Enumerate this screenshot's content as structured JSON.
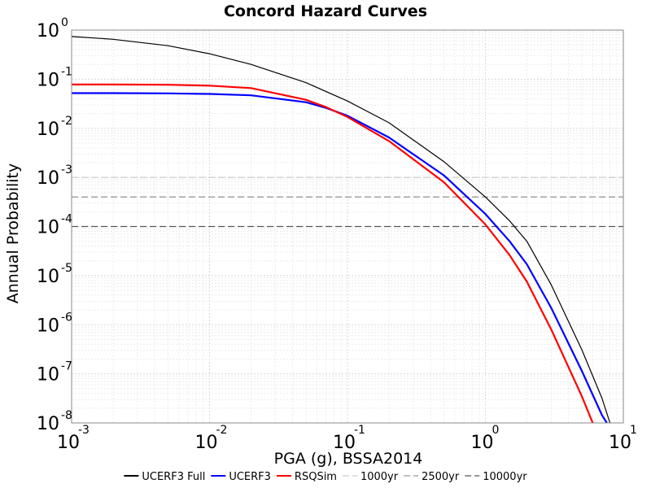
{
  "chart_data": {
    "type": "line",
    "title": "Concord Hazard Curves",
    "xlabel": "PGA (g), BSSA2014",
    "ylabel": "Annual Probability",
    "xscale": "log",
    "yscale": "log",
    "xlim": [
      0.001,
      10
    ],
    "ylim": [
      1e-08,
      1
    ],
    "x_ticks": [
      {
        "base": "10",
        "exp": "-3",
        "value": 0.001
      },
      {
        "base": "10",
        "exp": "-2",
        "value": 0.01
      },
      {
        "base": "10",
        "exp": "-1",
        "value": 0.1
      },
      {
        "base": "10",
        "exp": "0",
        "value": 1
      },
      {
        "base": "10",
        "exp": "1",
        "value": 10
      }
    ],
    "y_ticks": [
      {
        "base": "10",
        "exp": "0",
        "value": 1
      },
      {
        "base": "10",
        "exp": "-1",
        "value": 0.1
      },
      {
        "base": "10",
        "exp": "-2",
        "value": 0.01
      },
      {
        "base": "10",
        "exp": "-3",
        "value": 0.001
      },
      {
        "base": "10",
        "exp": "-4",
        "value": 0.0001
      },
      {
        "base": "10",
        "exp": "-5",
        "value": 1e-05
      },
      {
        "base": "10",
        "exp": "-6",
        "value": 1e-06
      },
      {
        "base": "10",
        "exp": "-7",
        "value": 1e-07
      },
      {
        "base": "10",
        "exp": "-8",
        "value": 1e-08
      }
    ],
    "grid": true,
    "legend_position": "bottom",
    "series": [
      {
        "name": "UCERF3 Full",
        "color": "#000000",
        "x": [
          0.001,
          0.002,
          0.005,
          0.01,
          0.02,
          0.05,
          0.1,
          0.2,
          0.5,
          1,
          1.5,
          2,
          3,
          5,
          7,
          8
        ],
        "y": [
          0.74,
          0.65,
          0.48,
          0.33,
          0.2,
          0.085,
          0.036,
          0.013,
          0.0021,
          0.0004,
          0.00013,
          5e-05,
          6.5e-06,
          3.1e-07,
          3.2e-08,
          1e-08
        ]
      },
      {
        "name": "UCERF3",
        "color": "#0000ff",
        "x": [
          0.001,
          0.002,
          0.005,
          0.01,
          0.02,
          0.05,
          0.07,
          0.1,
          0.2,
          0.5,
          1,
          1.5,
          2,
          3,
          5,
          7,
          7.6
        ],
        "y": [
          0.052,
          0.052,
          0.0515,
          0.05,
          0.047,
          0.034,
          0.026,
          0.018,
          0.0065,
          0.0011,
          0.00018,
          5e-05,
          1.7e-05,
          2.2e-06,
          1.15e-07,
          1.45e-08,
          1e-08
        ]
      },
      {
        "name": "RSQSim",
        "color": "#ff0000",
        "x": [
          0.001,
          0.002,
          0.005,
          0.01,
          0.02,
          0.05,
          0.07,
          0.1,
          0.2,
          0.5,
          1,
          1.5,
          2,
          3,
          5,
          6
        ],
        "y": [
          0.078,
          0.078,
          0.077,
          0.074,
          0.066,
          0.038,
          0.027,
          0.017,
          0.0055,
          0.0008,
          0.00011,
          2.6e-05,
          7.5e-06,
          8e-07,
          3.5e-08,
          1e-08
        ]
      },
      {
        "name": "1000yr",
        "color": "#cccccc",
        "dashed": true,
        "x": [
          0.001,
          10
        ],
        "y": [
          0.001,
          0.001
        ]
      },
      {
        "name": "2500yr",
        "color": "#999999",
        "dashed": true,
        "x": [
          0.001,
          10
        ],
        "y": [
          0.0004,
          0.0004
        ]
      },
      {
        "name": "10000yr",
        "color": "#555555",
        "dashed": true,
        "x": [
          0.001,
          10
        ],
        "y": [
          0.0001,
          0.0001
        ]
      }
    ]
  }
}
